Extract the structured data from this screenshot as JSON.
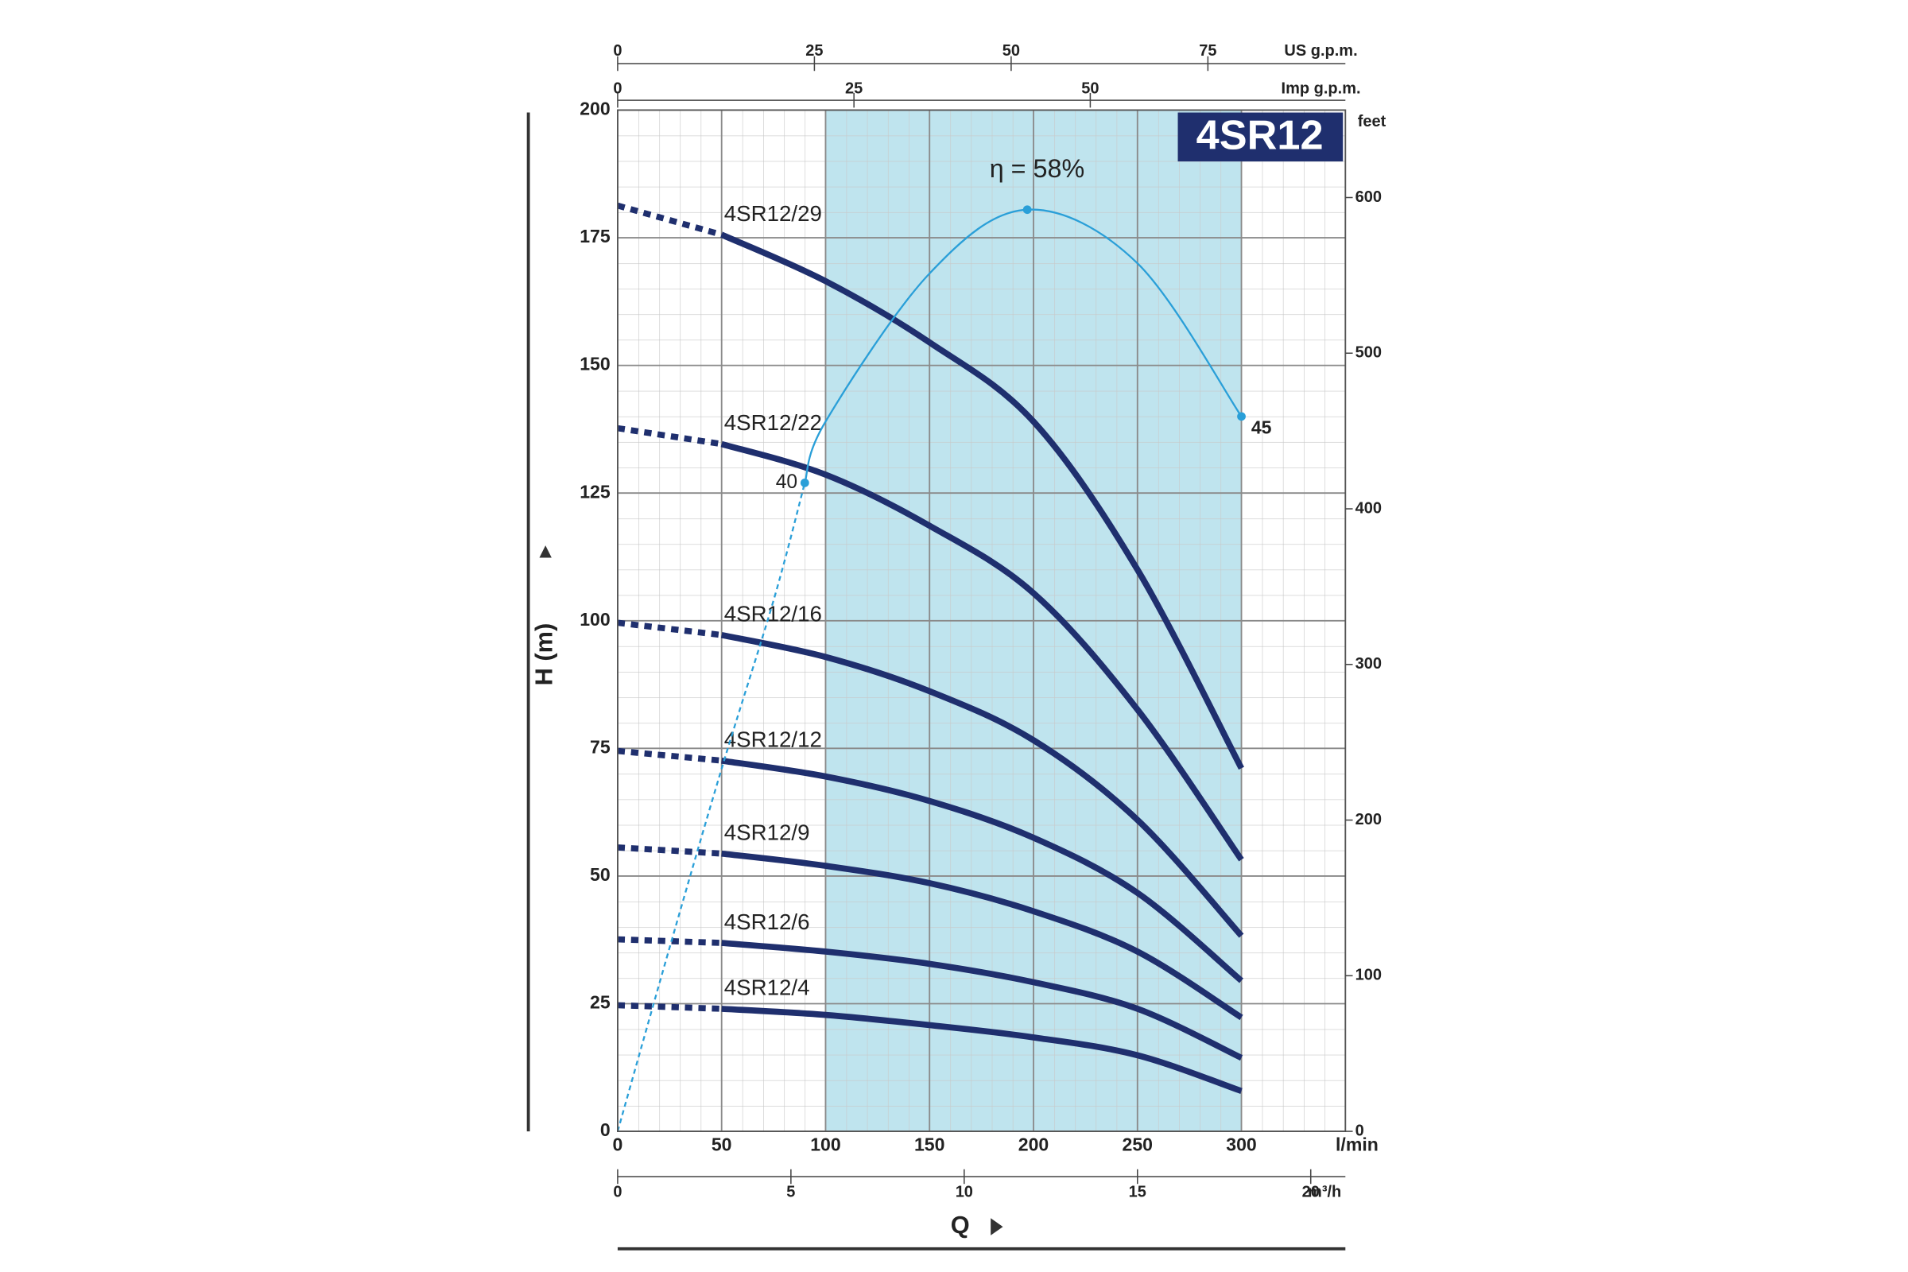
{
  "chart_data": {
    "type": "line",
    "badge": "4SR12",
    "x_label": "Q",
    "x_unit": "l/min",
    "y_label": "H (m)",
    "x": [
      0,
      25,
      50,
      75,
      90,
      100,
      150,
      197,
      200,
      250,
      300
    ],
    "xlim": [
      0,
      350
    ],
    "xticks": [
      0,
      50,
      100,
      150,
      200,
      250,
      300
    ],
    "ylim": [
      0,
      200
    ],
    "yticks": [
      0,
      25,
      50,
      75,
      100,
      125,
      150,
      175,
      200
    ],
    "grid": true,
    "shade": {
      "range": [
        100,
        300
      ],
      "color": "#bfe4ee"
    },
    "series": [
      {
        "name": "4SR12/29",
        "color": "#1f2f6e",
        "dashed_below": 50,
        "values": [
          181.3,
          null,
          175.6,
          null,
          null,
          166.5,
          154.5,
          null,
          139,
          110,
          71.1
        ]
      },
      {
        "name": "4SR12/22",
        "color": "#1f2f6e",
        "dashed_below": 50,
        "values": [
          137.7,
          null,
          134.6,
          null,
          null,
          128.6,
          118.6,
          null,
          105.4,
          82.6,
          53.2
        ]
      },
      {
        "name": "4SR12/16",
        "color": "#1f2f6e",
        "dashed_below": 50,
        "values": [
          99.6,
          null,
          97.2,
          null,
          null,
          92.9,
          86.2,
          null,
          76.6,
          61,
          38.3
        ]
      },
      {
        "name": "4SR12/12",
        "color": "#1f2f6e",
        "dashed_below": 50,
        "values": [
          74.5,
          null,
          72.6,
          null,
          null,
          69.5,
          64.7,
          null,
          57.5,
          46.7,
          29.5
        ]
      },
      {
        "name": "4SR12/9",
        "color": "#1f2f6e",
        "dashed_below": 50,
        "values": [
          55.6,
          null,
          54.4,
          null,
          null,
          52,
          48.6,
          null,
          43.1,
          35.2,
          22.3
        ]
      },
      {
        "name": "4SR12/6",
        "color": "#1f2f6e",
        "dashed_below": 50,
        "values": [
          37.6,
          null,
          36.9,
          null,
          null,
          35.2,
          32.8,
          null,
          29.2,
          24,
          14.4
        ]
      },
      {
        "name": "4SR12/4",
        "color": "#1f2f6e",
        "dashed_below": 50,
        "values": [
          24.7,
          null,
          24,
          null,
          null,
          22.8,
          20.8,
          null,
          18.4,
          14.9,
          7.9
        ]
      }
    ],
    "efficiency": {
      "color": "#2a9fd8",
      "dashed_below": 90,
      "values": [
        0,
        36,
        71,
        104,
        127,
        139,
        168,
        180.5,
        null,
        170,
        140
      ],
      "point_labels": [
        null,
        null,
        null,
        null,
        "40",
        null,
        null,
        "η = 58%",
        null,
        null,
        "45"
      ]
    },
    "axes": {
      "us_gpm": {
        "label": "US g.p.m.",
        "lim": [
          0,
          92.47
        ],
        "ticks": [
          0,
          25,
          50,
          75
        ]
      },
      "imp_gpm": {
        "label": "Imp g.p.m.",
        "lim": [
          0,
          76.99
        ],
        "ticks": [
          0,
          25,
          50
        ]
      },
      "m3h": {
        "label": "m³/h",
        "lim": [
          0,
          21
        ],
        "ticks": [
          0,
          5,
          10,
          15,
          20
        ]
      },
      "feet": {
        "label": "feet",
        "lim": [
          0,
          656.2
        ],
        "ticks": [
          0,
          100,
          200,
          300,
          400,
          500,
          600
        ]
      }
    }
  }
}
